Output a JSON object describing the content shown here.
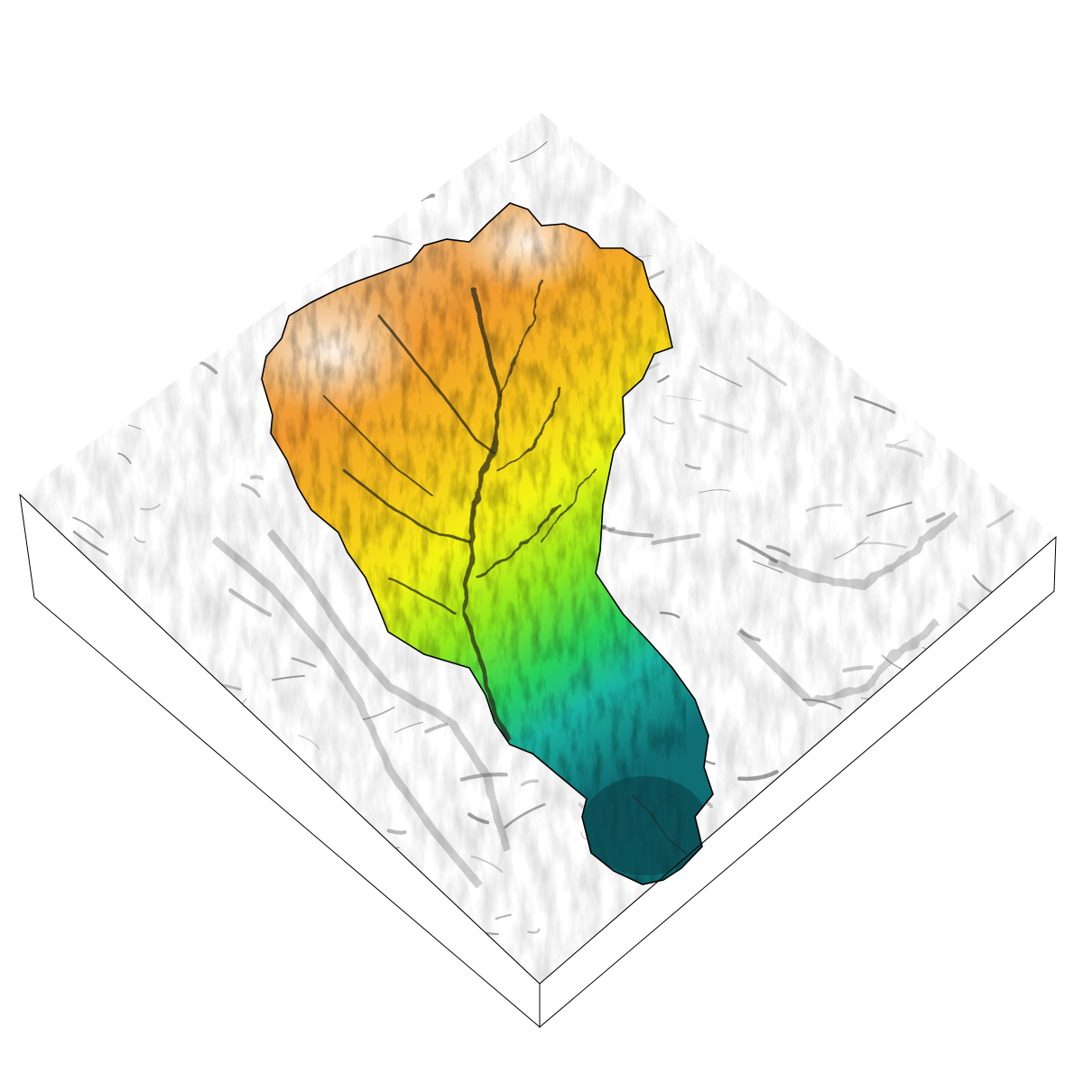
{
  "view": {
    "type": "3d-terrain-block-diagram",
    "projection": "isometric",
    "background_color": "#ffffff"
  },
  "terrain": {
    "surface_color": "#ffffff",
    "hillshade_color": "#5a5a5a",
    "block_side_color": "#ffffff",
    "outline_color": "#000000"
  },
  "watershed": {
    "outline_color": "#000000",
    "channel_color": "#2a2a1a",
    "elevation_ramp": [
      "#f2f2f0",
      "#e8b98a",
      "#f19a2e",
      "#f6c21a",
      "#f4f414",
      "#8ce81e",
      "#28d15a",
      "#1ab4a2",
      "#0f6e74"
    ]
  }
}
